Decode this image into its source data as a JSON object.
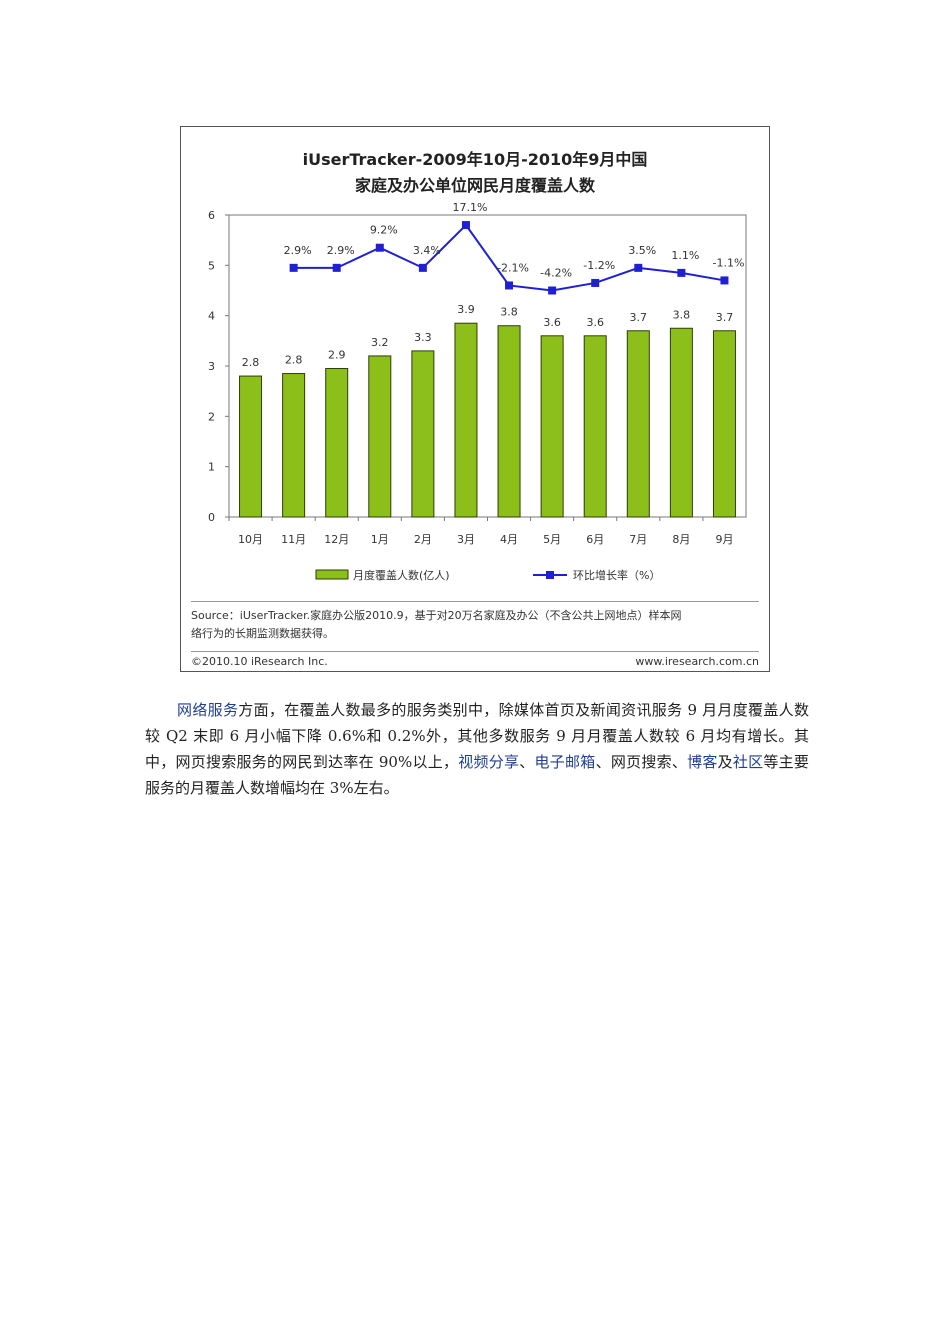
{
  "chart_data": {
    "type": "bar+line",
    "title_line1": "iUserTracker-2009年10月-2010年9月中国",
    "title_line2": "家庭及办公单位网民月度覆盖人数",
    "categories": [
      "10月",
      "11月",
      "12月",
      "1月",
      "2月",
      "3月",
      "4月",
      "5月",
      "6月",
      "7月",
      "8月",
      "9月"
    ],
    "y_ticks": [
      "0",
      "1",
      "2",
      "3",
      "4",
      "5",
      "6"
    ],
    "ylim": [
      0,
      6
    ],
    "series": [
      {
        "name": "月度覆盖人数(亿人)",
        "type": "bar",
        "color": "#8cbf1a",
        "values": [
          2.8,
          2.85,
          2.95,
          3.2,
          3.3,
          3.85,
          3.8,
          3.6,
          3.6,
          3.7,
          3.75,
          3.7
        ],
        "labels": [
          "2.8",
          "2.8",
          "2.9",
          "3.2",
          "3.3",
          "3.9",
          "3.8",
          "3.6",
          "3.6",
          "3.7",
          "3.8",
          "3.7"
        ]
      },
      {
        "name": "环比增长率（%）",
        "type": "line",
        "color": "#1f1fd6",
        "values": [
          null,
          4.95,
          4.95,
          5.35,
          4.95,
          5.8,
          4.6,
          4.5,
          4.65,
          4.95,
          4.85,
          4.7
        ],
        "labels": [
          "",
          "2.9%",
          "2.9%",
          "9.2%",
          "3.4%",
          "17.1%",
          "-2.1%",
          "-4.2%",
          "-1.2%",
          "3.5%",
          "1.1%",
          "-1.1%"
        ]
      }
    ],
    "grid": false,
    "legend_position": "bottom"
  },
  "source": {
    "line1": "Source：iUserTracker.家庭办公版2010.9，基于对20万名家庭及办公（不含公共上网地点）样本网",
    "line2": "络行为的长期监测数据获得。"
  },
  "footer": {
    "copyright": "©2010.10 iResearch Inc.",
    "website": "www.iresearch.com.cn"
  },
  "paragraph": {
    "s1_link": "网络服务",
    "s1_text": "方面，在覆盖人数最多的服务类别中，除媒体首页及新闻资讯服务 9 月月度覆盖人数较 Q2 末即 6 月小幅下降 0.6%和 0.2%外，其他多数服务 9 月月覆盖人数较 6 月均有增长。其中，网页搜索服务的网民到达率在 90%以上，",
    "link_video": "视频分享",
    "sep1": "、",
    "link_email": "电子邮箱",
    "s2_text": "、网页搜索、",
    "link_blog": "博客",
    "s3_text": "及",
    "link_community": "社区",
    "s4_text": "等主要服务的月覆盖人数增幅均在 3%左右。"
  }
}
